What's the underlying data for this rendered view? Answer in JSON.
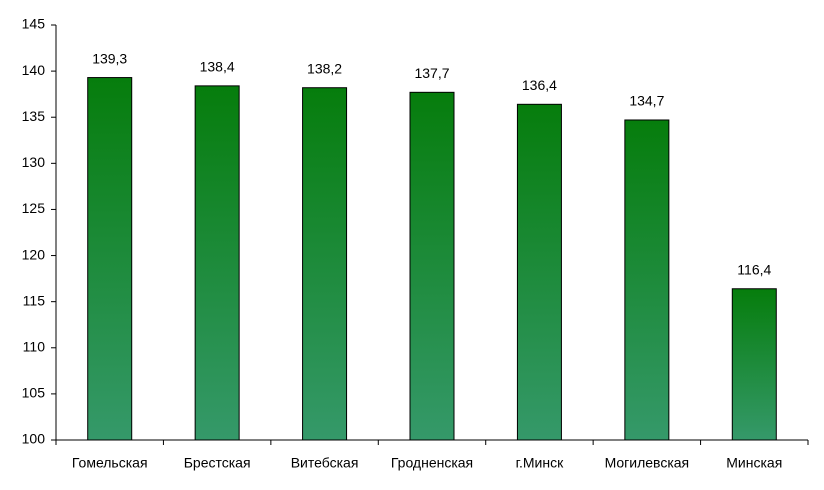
{
  "chart_data": {
    "type": "bar",
    "categories": [
      "Гомельская",
      "Брестская",
      "Витебская",
      "Гродненская",
      "г.Минск",
      "Могилевская",
      "Минская"
    ],
    "values": [
      139.3,
      138.4,
      138.2,
      137.7,
      136.4,
      134.7,
      116.4
    ],
    "value_labels": [
      "139,3",
      "138,4",
      "138,2",
      "137,7",
      "136,4",
      "134,7",
      "116,4"
    ],
    "gradient": [
      "#067d0c",
      "#35996a"
    ],
    "ylim": [
      100,
      145
    ],
    "yticks": [
      100,
      105,
      110,
      115,
      120,
      125,
      130,
      135,
      140,
      145
    ],
    "grid": false
  }
}
